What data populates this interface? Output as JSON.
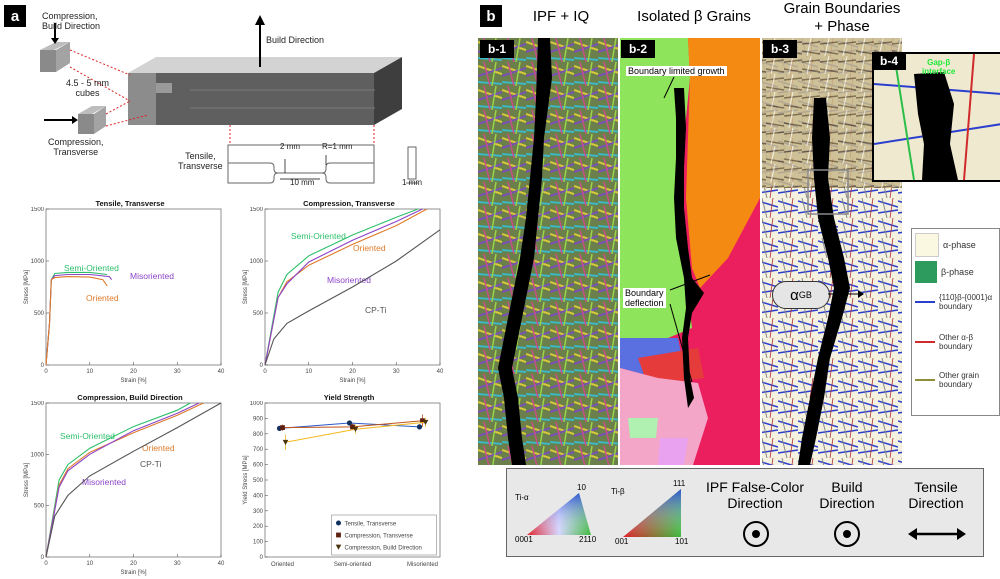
{
  "panel_a": {
    "tag": "a",
    "schematic": {
      "label_comp_build": "Compression,\nBuild Direction",
      "label_cubes": "4.5 - 5 mm\ncubes",
      "label_comp_trans": "Compression,\nTransverse",
      "label_build_dir": "Build Direction",
      "label_tensile": "Tensile,\nTransverse",
      "dim_2mm": "2 mm",
      "dim_r1mm": "R=1 mm",
      "dim_10mm": "10 mm",
      "dim_1mm": "1 mm"
    }
  },
  "panel_b": {
    "tag": "b",
    "headers": {
      "h1": "IPF + IQ",
      "h2": "Isolated β Grains",
      "h3": "Grain Boundaries\n+ Phase"
    },
    "sub_tags": [
      "b-1",
      "b-2",
      "b-3",
      "b-4"
    ],
    "annotations": {
      "boundary_limited": "Boundary limited growth",
      "boundary_deflection": "Boundary\ndeflection",
      "alpha_gb": "α",
      "alpha_gb_sub": "GB",
      "inset_label": "Gap-β\ninterface"
    },
    "phase_legend": [
      {
        "label": "α-phase",
        "color": "#fbf8e2"
      },
      {
        "label": "β-phase",
        "color": "#2e9b5e"
      },
      {
        "label": "{110}β-{0001}α\nboundary",
        "color": "#2b3fcf"
      },
      {
        "label": "Other α-β\nboundary",
        "color": "#cf2b2b"
      },
      {
        "label": "Other grain\nboundary",
        "color": "#8f8f3a"
      }
    ],
    "bottom_legend": {
      "ti_alpha": "Ti-α",
      "ti_beta": "Ti-β",
      "alpha_top": "10",
      "alpha_bl": "0001",
      "alpha_br": "2110",
      "beta_top": "111",
      "beta_bl": "001",
      "beta_br": "101",
      "ipf_dir": "IPF False-Color\nDirection",
      "build_dir": "Build\nDirection",
      "tensile_dir": "Tensile\nDirection"
    }
  },
  "chart_data": [
    {
      "type": "line",
      "title": "Tensile, Transverse",
      "xlabel": "Strain [%]",
      "ylabel": "Stress [MPa]",
      "xlim": [
        0,
        40
      ],
      "ylim": [
        0,
        1500
      ],
      "xticks": [
        0,
        10,
        20,
        30,
        40
      ],
      "yticks": [
        0,
        500,
        1000,
        1500
      ],
      "series": [
        {
          "name": "Semi-Oriented",
          "color": "#2bbf6a",
          "x": [
            0,
            0.8,
            1.2,
            2,
            5,
            10,
            14
          ],
          "y": [
            0,
            400,
            820,
            880,
            890,
            890,
            870
          ]
        },
        {
          "name": "Misoriented",
          "color": "#8c44c8",
          "x": [
            0,
            0.8,
            1.2,
            2,
            5,
            10,
            14.5,
            15
          ],
          "y": [
            0,
            400,
            820,
            860,
            870,
            870,
            850,
            820
          ]
        },
        {
          "name": "Oriented",
          "color": "#e07a2a",
          "x": [
            0,
            0.8,
            1.2,
            2,
            5,
            10,
            13,
            14
          ],
          "y": [
            0,
            400,
            820,
            840,
            850,
            845,
            820,
            760
          ]
        }
      ]
    },
    {
      "type": "line",
      "title": "Compression, Transverse",
      "xlabel": "Strain [%]",
      "ylabel": "Stress [MPa]",
      "xlim": [
        0,
        40
      ],
      "ylim": [
        0,
        1500
      ],
      "xticks": [
        0,
        10,
        20,
        30,
        40
      ],
      "yticks": [
        0,
        500,
        1000,
        1500
      ],
      "series": [
        {
          "name": "Semi-Oriented",
          "color": "#2bbf6a",
          "x": [
            0,
            3,
            5,
            10,
            20,
            30,
            35
          ],
          "y": [
            0,
            700,
            870,
            1050,
            1250,
            1420,
            1500
          ]
        },
        {
          "name": "Oriented",
          "color": "#e07a2a",
          "x": [
            0,
            3,
            5,
            10,
            20,
            30,
            37
          ],
          "y": [
            0,
            650,
            800,
            960,
            1160,
            1340,
            1500
          ]
        },
        {
          "name": "Misoriented",
          "color": "#8c44c8",
          "x": [
            0,
            3,
            5,
            10,
            20,
            30,
            36
          ],
          "y": [
            0,
            650,
            780,
            990,
            1200,
            1380,
            1500
          ]
        },
        {
          "name": "CP-Ti",
          "color": "#555555",
          "x": [
            0,
            2,
            5,
            10,
            20,
            30,
            40
          ],
          "y": [
            0,
            250,
            400,
            520,
            750,
            1000,
            1300
          ]
        }
      ]
    },
    {
      "type": "line",
      "title": "Compression, Build Direction",
      "xlabel": "Strain [%]",
      "ylabel": "Stress [MPa]",
      "xlim": [
        0,
        40
      ],
      "ylim": [
        0,
        1500
      ],
      "xticks": [
        0,
        10,
        20,
        30,
        40
      ],
      "yticks": [
        0,
        500,
        1000,
        1500
      ],
      "series": [
        {
          "name": "Semi-Oriented",
          "color": "#2bbf6a",
          "x": [
            0,
            3,
            5,
            10,
            20,
            30,
            33
          ],
          "y": [
            0,
            750,
            900,
            1060,
            1270,
            1430,
            1500
          ]
        },
        {
          "name": "Oriented",
          "color": "#e07a2a",
          "x": [
            0,
            3,
            5,
            10,
            20,
            30,
            36
          ],
          "y": [
            0,
            700,
            860,
            1020,
            1210,
            1380,
            1500
          ]
        },
        {
          "name": "Misoriented",
          "color": "#8c44c8",
          "x": [
            0,
            3,
            5,
            10,
            20,
            30,
            35
          ],
          "y": [
            0,
            680,
            840,
            1000,
            1230,
            1400,
            1500
          ]
        },
        {
          "name": "CP-Ti",
          "color": "#555555",
          "x": [
            0,
            2,
            5,
            10,
            20,
            30,
            40
          ],
          "y": [
            0,
            400,
            600,
            790,
            1030,
            1260,
            1500
          ]
        }
      ]
    },
    {
      "type": "scatter",
      "title": "Yield Strength",
      "ylabel": "Yield Stress [MPa]",
      "categories": [
        "Oriented",
        "Semi-oriented",
        "Misoriented"
      ],
      "ylim": [
        0,
        1000
      ],
      "yticks": [
        0,
        100,
        200,
        300,
        400,
        500,
        600,
        700,
        800,
        900,
        1000
      ],
      "series": [
        {
          "name": "Tensile, Transverse",
          "color": "#2a5ac9",
          "marker": "circle",
          "values": [
            835,
            870,
            845
          ],
          "err": [
            10,
            15,
            10
          ]
        },
        {
          "name": "Compression, Transverse",
          "color": "#c0541a",
          "marker": "square",
          "values": [
            840,
            845,
            885
          ],
          "err": [
            20,
            20,
            40
          ]
        },
        {
          "name": "Compression, Build Direction",
          "color": "#f2b81f",
          "marker": "triangle",
          "values": [
            745,
            830,
            875
          ],
          "err": [
            50,
            30,
            30
          ]
        }
      ]
    }
  ]
}
